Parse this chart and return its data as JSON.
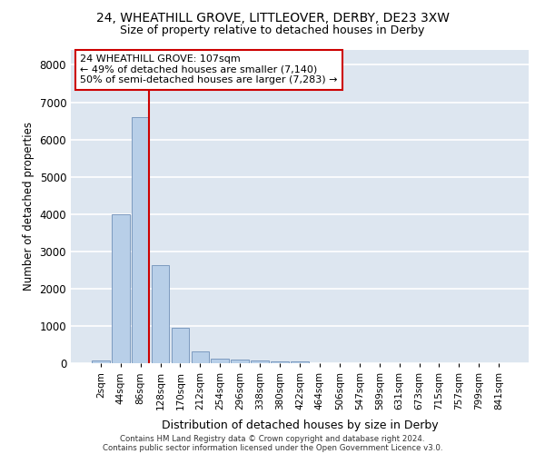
{
  "title_line1": "24, WHEATHILL GROVE, LITTLEOVER, DERBY, DE23 3XW",
  "title_line2": "Size of property relative to detached houses in Derby",
  "xlabel": "Distribution of detached houses by size in Derby",
  "ylabel": "Number of detached properties",
  "categories": [
    "2sqm",
    "44sqm",
    "86sqm",
    "128sqm",
    "170sqm",
    "212sqm",
    "254sqm",
    "296sqm",
    "338sqm",
    "380sqm",
    "422sqm",
    "464sqm",
    "506sqm",
    "547sqm",
    "589sqm",
    "631sqm",
    "673sqm",
    "715sqm",
    "757sqm",
    "799sqm",
    "841sqm"
  ],
  "bar_heights": [
    80,
    4000,
    6600,
    2620,
    950,
    320,
    130,
    100,
    70,
    55,
    55,
    0,
    0,
    0,
    0,
    0,
    0,
    0,
    0,
    0,
    0
  ],
  "bar_color": "#b8cfe8",
  "bar_edge_color": "#7090b8",
  "vline_bar_index": 2,
  "vline_color": "#cc0000",
  "annotation_text": "24 WHEATHILL GROVE: 107sqm\n← 49% of detached houses are smaller (7,140)\n50% of semi-detached houses are larger (7,283) →",
  "annotation_box_facecolor": "#ffffff",
  "annotation_box_edgecolor": "#cc0000",
  "ylim": [
    0,
    8400
  ],
  "yticks": [
    0,
    1000,
    2000,
    3000,
    4000,
    5000,
    6000,
    7000,
    8000
  ],
  "plot_bg_color": "#dde6f0",
  "grid_color": "#ffffff",
  "footer_line1": "Contains HM Land Registry data © Crown copyright and database right 2024.",
  "footer_line2": "Contains public sector information licensed under the Open Government Licence v3.0."
}
